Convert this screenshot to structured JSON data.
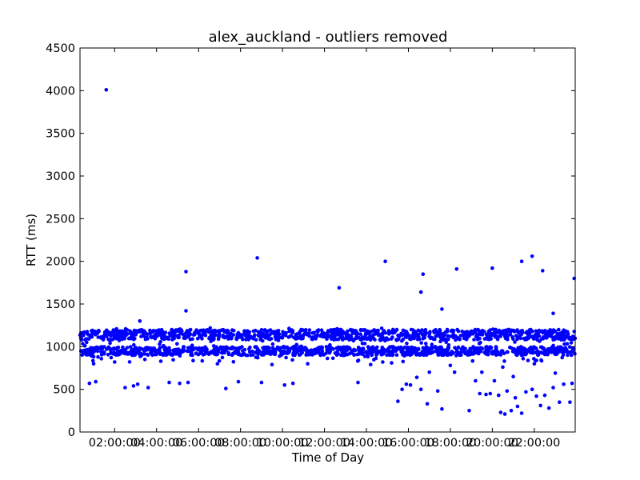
{
  "chart_data": {
    "type": "scatter",
    "title": "alex_auckland - outliers removed",
    "xlabel": "Time of Day",
    "ylabel": "RTT (ms)",
    "x_unit": "hours",
    "xlim": [
      0.35,
      23.95
    ],
    "ylim": [
      0,
      4500
    ],
    "xticks": [
      2,
      4,
      6,
      8,
      10,
      12,
      14,
      16,
      18,
      20,
      22
    ],
    "xtick_labels": [
      "02:00:00",
      "04:00:00",
      "06:00:00",
      "08:00:00",
      "10:00:00",
      "12:00:00",
      "14:00:00",
      "16:00:00",
      "18:00:00",
      "20:00:00",
      "22:00:00"
    ],
    "yticks": [
      0,
      500,
      1000,
      1500,
      2000,
      2500,
      3000,
      3500,
      4000,
      4500
    ],
    "ytick_labels": [
      "0",
      "500",
      "1000",
      "1500",
      "2000",
      "2500",
      "3000",
      "3500",
      "4000",
      "4500"
    ],
    "grid": false,
    "legend": "none",
    "marker_color": "#0000ff",
    "dense_bands": [
      {
        "y_min": 900,
        "y_max": 1000,
        "x_range": [
          0.35,
          23.95
        ]
      },
      {
        "y_min": 1080,
        "y_max": 1200,
        "x_range": [
          0.35,
          23.95
        ]
      }
    ],
    "outlier_points": [
      [
        1.6,
        4010
      ],
      [
        3.2,
        1300
      ],
      [
        5.4,
        1880
      ],
      [
        5.4,
        1420
      ],
      [
        8.8,
        2040
      ],
      [
        12.7,
        1690
      ],
      [
        14.9,
        2000
      ],
      [
        16.7,
        1850
      ],
      [
        16.6,
        1640
      ],
      [
        17.6,
        1440
      ],
      [
        18.3,
        1910
      ],
      [
        20.0,
        1920
      ],
      [
        21.4,
        2000
      ],
      [
        21.9,
        2060
      ],
      [
        22.4,
        1890
      ],
      [
        22.9,
        1390
      ],
      [
        23.9,
        1800
      ],
      [
        0.8,
        570
      ],
      [
        1.1,
        590
      ],
      [
        2.5,
        520
      ],
      [
        2.9,
        540
      ],
      [
        3.1,
        560
      ],
      [
        3.6,
        520
      ],
      [
        4.6,
        580
      ],
      [
        5.1,
        570
      ],
      [
        5.5,
        580
      ],
      [
        7.3,
        510
      ],
      [
        7.9,
        590
      ],
      [
        9.0,
        580
      ],
      [
        10.1,
        550
      ],
      [
        10.5,
        570
      ],
      [
        13.6,
        580
      ],
      [
        15.5,
        360
      ],
      [
        15.7,
        500
      ],
      [
        15.9,
        560
      ],
      [
        16.1,
        550
      ],
      [
        16.4,
        640
      ],
      [
        16.6,
        500
      ],
      [
        16.9,
        330
      ],
      [
        17.4,
        480
      ],
      [
        17.6,
        270
      ],
      [
        18.2,
        700
      ],
      [
        18.9,
        250
      ],
      [
        19.2,
        600
      ],
      [
        19.4,
        450
      ],
      [
        19.7,
        440
      ],
      [
        19.9,
        450
      ],
      [
        20.1,
        600
      ],
      [
        20.3,
        430
      ],
      [
        20.4,
        230
      ],
      [
        20.6,
        210
      ],
      [
        20.7,
        480
      ],
      [
        20.9,
        250
      ],
      [
        21.1,
        400
      ],
      [
        21.2,
        300
      ],
      [
        21.4,
        220
      ],
      [
        21.6,
        470
      ],
      [
        21.9,
        500
      ],
      [
        22.1,
        420
      ],
      [
        22.3,
        310
      ],
      [
        22.5,
        430
      ],
      [
        22.7,
        280
      ],
      [
        22.9,
        520
      ],
      [
        23.2,
        350
      ],
      [
        23.4,
        560
      ],
      [
        23.7,
        350
      ],
      [
        23.8,
        570
      ],
      [
        18.0,
        780
      ],
      [
        19.5,
        700
      ],
      [
        20.5,
        760
      ],
      [
        21.0,
        650
      ],
      [
        22.0,
        800
      ],
      [
        1.0,
        800
      ],
      [
        2.0,
        820
      ],
      [
        4.2,
        830
      ],
      [
        6.9,
        800
      ],
      [
        9.5,
        790
      ],
      [
        11.2,
        800
      ],
      [
        14.2,
        790
      ],
      [
        15.2,
        810
      ],
      [
        17.0,
        700
      ],
      [
        23.0,
        690
      ]
    ]
  }
}
